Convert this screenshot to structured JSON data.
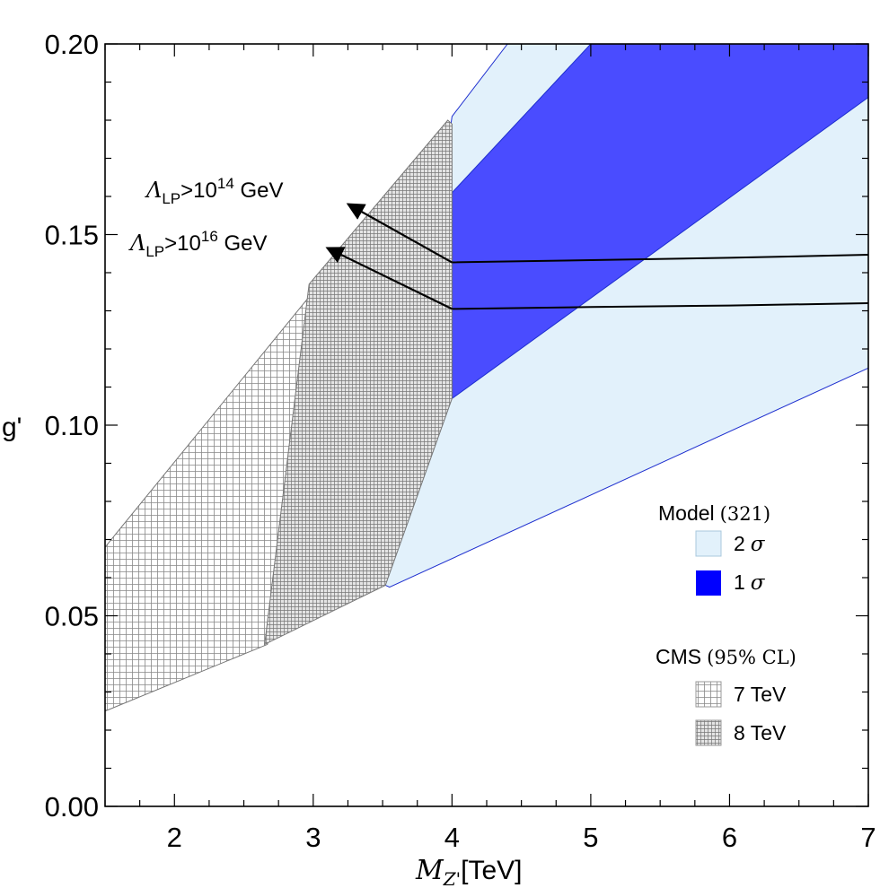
{
  "chart_data": {
    "type": "area",
    "title": "",
    "xlabel": {
      "main": "M",
      "sub": "Z'",
      "unit": "[TeV]"
    },
    "ylabel": "g'",
    "xlim": [
      1.5,
      7
    ],
    "ylim": [
      0,
      0.2
    ],
    "x_ticks": [
      2,
      3,
      4,
      5,
      6,
      7
    ],
    "x_tick_labels": [
      "2",
      "3",
      "4",
      "5",
      "6",
      "7"
    ],
    "y_ticks": [
      0.0,
      0.05,
      0.1,
      0.15,
      0.2
    ],
    "y_tick_labels": [
      "0.00",
      "0.05",
      "0.10",
      "0.15",
      "0.20"
    ],
    "grid": false,
    "colors": {
      "two_sigma": "#e2f1fb",
      "one_sigma": "#4a4cff",
      "blue_edge": "#1e2fcf",
      "hatch_line": "#777777",
      "hatch_8_fill": "#dcdcdc",
      "frame": "#000000"
    },
    "series": [
      {
        "name": "Model (321) 2σ",
        "kind": "filled-region",
        "points": [
          [
            3.52,
            0.058
          ],
          [
            4.0,
            0.181
          ],
          [
            4.4,
            0.2
          ],
          [
            7.0,
            0.2
          ],
          [
            7.0,
            0.115
          ],
          [
            3.55,
            0.0575
          ]
        ]
      },
      {
        "name": "Model (321) 1σ",
        "kind": "filled-region",
        "points": [
          [
            4.0,
            0.107
          ],
          [
            4.0,
            0.161
          ],
          [
            5.0,
            0.2
          ],
          [
            7.0,
            0.2
          ],
          [
            7.0,
            0.186
          ]
        ]
      },
      {
        "name": "CMS 7 TeV (95% CL)",
        "kind": "hatched-region",
        "points": [
          [
            1.5,
            0.025
          ],
          [
            1.5,
            0.068
          ],
          [
            3.0,
            0.135
          ],
          [
            3.0,
            0.085
          ],
          [
            2.67,
            0.0425
          ]
        ]
      },
      {
        "name": "CMS 8 TeV (95% CL)",
        "kind": "hatched-region",
        "points": [
          [
            2.97,
            0.137
          ],
          [
            3.97,
            0.18
          ],
          [
            4.0,
            0.179
          ],
          [
            4.0,
            0.107
          ],
          [
            3.52,
            0.058
          ],
          [
            2.65,
            0.0425
          ]
        ]
      },
      {
        "name": "Lambda_LP > 10^14 GeV",
        "kind": "line",
        "points": [
          [
            4.0,
            0.1427
          ],
          [
            5.0,
            0.1433
          ],
          [
            6.0,
            0.1439
          ],
          [
            7.0,
            0.1447
          ]
        ]
      },
      {
        "name": "Lambda_LP > 10^16 GeV",
        "kind": "line",
        "points": [
          [
            4.0,
            0.1305
          ],
          [
            5.0,
            0.131
          ],
          [
            6.0,
            0.1314
          ],
          [
            7.0,
            0.132
          ]
        ]
      }
    ],
    "annotations": [
      {
        "id": "lp14",
        "base": "Λ",
        "sub": "LP",
        "op": ">10",
        "exp": "14",
        "unit": " GeV",
        "arrow_from": [
          4.0,
          0.1427
        ],
        "arrow_to": [
          3.25,
          0.158
        ]
      },
      {
        "id": "lp16",
        "base": "Λ",
        "sub": "LP",
        "op": ">10",
        "exp": "16",
        "unit": " GeV",
        "arrow_from": [
          4.0,
          0.1305
        ],
        "arrow_to": [
          3.1,
          0.1465
        ]
      }
    ],
    "legend": {
      "placement": "bottom-right",
      "groups": [
        {
          "title": "Model",
          "title_note": "(321)",
          "items": [
            {
              "label": "2",
              "symbol": "σ",
              "swatch": "two_sigma"
            },
            {
              "label": "1",
              "symbol": "σ",
              "swatch": "one_sigma"
            }
          ]
        },
        {
          "title": "CMS",
          "title_note": "(95% CL)",
          "items": [
            {
              "label": "7 TeV",
              "symbol": "",
              "swatch": "hatch7"
            },
            {
              "label": "8 TeV",
              "symbol": "",
              "swatch": "hatch8"
            }
          ]
        }
      ]
    }
  }
}
